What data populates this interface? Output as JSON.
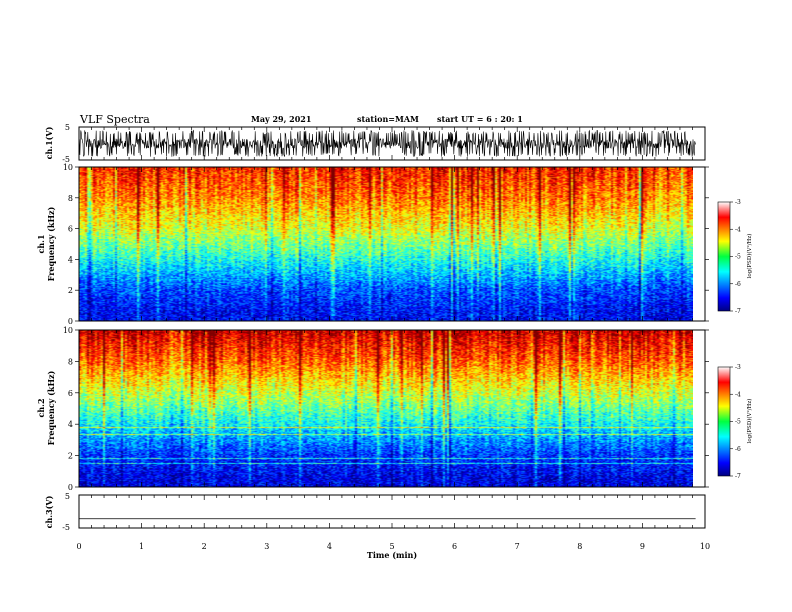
{
  "header": {
    "title": "VLF Spectra",
    "date": "May 29, 2021",
    "station": "station=MAM",
    "start": "start UT =  6 : 20: 1"
  },
  "chart_data": [
    {
      "type": "line",
      "name": "ch1-waveform",
      "ylabel": "ch.1(V)",
      "y_ticks": [
        "5",
        "-5"
      ],
      "ylim": [
        -5,
        5
      ],
      "xlim": [
        0,
        10
      ],
      "description_values": {
        "typical_amplitude_range": [
          -4,
          4
        ]
      }
    },
    {
      "type": "heatmap",
      "name": "ch1-spectrogram",
      "ylabel": "ch.1\nFrequency (kHz)",
      "ylabel_line1": "ch.1",
      "ylabel_line2": "Frequency (kHz)",
      "y_ticks": [
        "0",
        "2",
        "4",
        "6",
        "8",
        "10"
      ],
      "ylim": [
        0,
        10
      ],
      "xlim": [
        0,
        9.85
      ],
      "colorbar": {
        "ticks": [
          "-3",
          "-4",
          "-5",
          "-6",
          "-7"
        ],
        "label": "log(PSD)(V²/Hz)",
        "range": [
          -7,
          -3
        ]
      },
      "approx_log_psd_profile": [
        {
          "freq_khz": 0.5,
          "log_psd": -6.5
        },
        {
          "freq_khz": 2,
          "log_psd": -6.2
        },
        {
          "freq_khz": 4,
          "log_psd": -5.4
        },
        {
          "freq_khz": 6,
          "log_psd": -4.6
        },
        {
          "freq_khz": 8,
          "log_psd": -4.0
        },
        {
          "freq_khz": 10,
          "log_psd": -3.6
        }
      ]
    },
    {
      "type": "heatmap",
      "name": "ch2-spectrogram",
      "ylabel_line1": "ch.2",
      "ylabel_line2": "Frequency (kHz)",
      "y_ticks": [
        "0",
        "2",
        "4",
        "6",
        "8",
        "10"
      ],
      "ylim": [
        0,
        10
      ],
      "xlim": [
        0,
        9.85
      ],
      "colorbar": {
        "ticks": [
          "-3",
          "-4",
          "-5",
          "-6",
          "-7"
        ],
        "label": "log(PSD)(V²/Hz)",
        "range": [
          -7,
          -3
        ]
      },
      "approx_log_psd_profile": [
        {
          "freq_khz": 0.5,
          "log_psd": -6.6
        },
        {
          "freq_khz": 2,
          "log_psd": -6.3
        },
        {
          "freq_khz": 4,
          "log_psd": -5.5
        },
        {
          "freq_khz": 6,
          "log_psd": -4.7
        },
        {
          "freq_khz": 8,
          "log_psd": -3.9
        },
        {
          "freq_khz": 10,
          "log_psd": -3.3
        }
      ]
    },
    {
      "type": "line",
      "name": "ch3-waveform",
      "ylabel": "ch.3(V)",
      "y_ticks": [
        "5",
        "-5"
      ],
      "ylim": [
        -5,
        5
      ],
      "xlim": [
        0,
        10
      ],
      "xlabel": "Time (min)",
      "x_ticks": [
        "0",
        "1",
        "2",
        "3",
        "4",
        "5",
        "6",
        "7",
        "8",
        "9",
        "10"
      ],
      "x": [
        0,
        9.85
      ],
      "y": [
        -2.2,
        -2.2
      ]
    }
  ]
}
